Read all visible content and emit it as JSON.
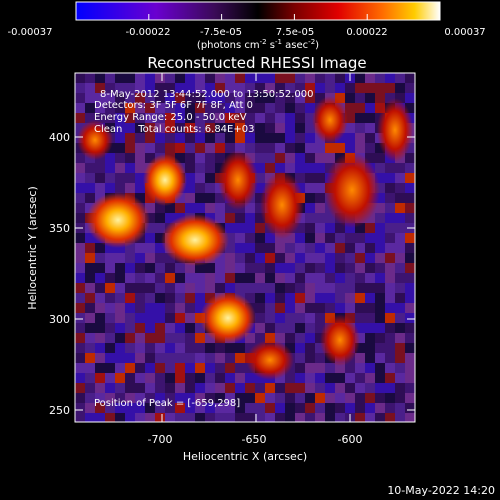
{
  "colorbar": {
    "ticks": [
      "-0.00037",
      "-0.00022",
      "-7.5e-05",
      "7.5e-05",
      "0.00022",
      "0.00037"
    ],
    "units_main": "(photons cm",
    "units_exp1": "-2",
    "units_mid": " s",
    "units_exp2": "-1",
    "units_mid2": " asec",
    "units_exp3": "-2",
    "units_end": ")",
    "colors": [
      "#0000ff",
      "#6a00d0",
      "#3b0a58",
      "#000000",
      "#7a0000",
      "#e00000",
      "#ff6a00",
      "#ffcc00",
      "#ffffff"
    ]
  },
  "plot": {
    "title": "Reconstructed RHESSI Image",
    "info_lines": [
      "8-May-2012 13:44:52.000 to 13:50:52.000",
      "Detectors: 3F 5F 6F 7F 8F, Att 0",
      "Energy Range: 25.0 - 50.0 keV",
      "Clean     Total counts: 6.84E+03"
    ],
    "peak_label": "Position of Peak = [-659,298]",
    "xlabel": "Heliocentric X (arcsec)",
    "ylabel": "Heliocentric Y (arcsec)",
    "xticks": [
      "-700",
      "-650",
      "-600"
    ],
    "yticks": [
      "400",
      "350",
      "300",
      "250"
    ]
  },
  "footer": {
    "date": "10-May-2022 14:20"
  }
}
